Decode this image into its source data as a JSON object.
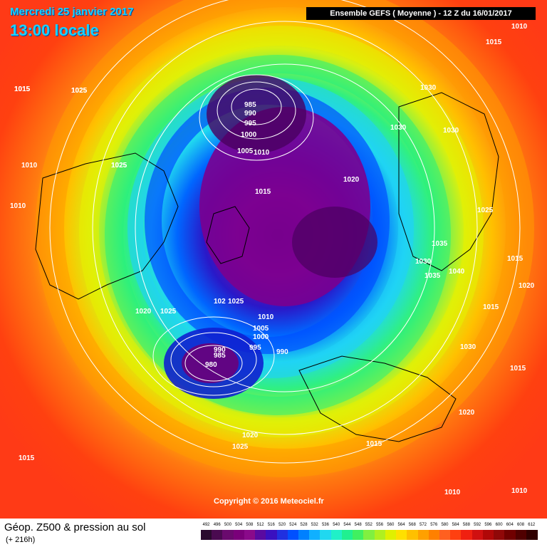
{
  "header": {
    "date_label": "Mercredi 25 janvier 2017",
    "time_label": "13:00 locale",
    "model_run": "Ensemble GEFS  ( Moyenne )  -  12 Z du 16/01/2017"
  },
  "copyright": "Copyright © 2016 Meteociel.fr",
  "footer": {
    "field_title": "Géop. Z500 & pression au sol",
    "lead_time": "(+ 216h)"
  },
  "legend": {
    "values": [
      "492",
      "496",
      "500",
      "504",
      "508",
      "512",
      "516",
      "520",
      "524",
      "528",
      "532",
      "536",
      "540",
      "544",
      "548",
      "552",
      "556",
      "560",
      "564",
      "568",
      "572",
      "576",
      "580",
      "584",
      "588",
      "592",
      "596",
      "600",
      "604",
      "608",
      "612"
    ],
    "colors": [
      "#2a0a2e",
      "#4a0a50",
      "#6a0a6e",
      "#7a007a",
      "#8a0a8a",
      "#5a0aa0",
      "#3a10c0",
      "#2030e0",
      "#0050ff",
      "#0080ff",
      "#10b0ff",
      "#20d8f0",
      "#20f0c8",
      "#20f090",
      "#40f060",
      "#80f040",
      "#b0f020",
      "#e0f000",
      "#ffe000",
      "#ffc000",
      "#ffa000",
      "#ff8000",
      "#ff6020",
      "#ff4010",
      "#f02010",
      "#d01010",
      "#b00808",
      "#900808",
      "#700000",
      "#500000",
      "#300000"
    ]
  },
  "pressure_labels": [
    {
      "text": "1010"
    },
    {
      "text": "1015"
    },
    {
      "text": "1015"
    },
    {
      "text": "1025"
    },
    {
      "text": "1030"
    },
    {
      "text": "1030"
    },
    {
      "text": "1030"
    },
    {
      "text": "985"
    },
    {
      "text": "990"
    },
    {
      "text": "995"
    },
    {
      "text": "1000"
    },
    {
      "text": "1005"
    },
    {
      "text": "1010"
    },
    {
      "text": "1025"
    },
    {
      "text": "1015"
    },
    {
      "text": "1020"
    },
    {
      "text": "1010"
    },
    {
      "text": "1010"
    },
    {
      "text": "1015"
    },
    {
      "text": "1025"
    },
    {
      "text": "1020"
    },
    {
      "text": "1025"
    },
    {
      "text": "1025"
    },
    {
      "text": "1025"
    },
    {
      "text": "1035"
    },
    {
      "text": "1030"
    },
    {
      "text": "1035"
    },
    {
      "text": "1040"
    },
    {
      "text": "1015"
    },
    {
      "text": "1020"
    },
    {
      "text": "1015"
    },
    {
      "text": "102"
    },
    {
      "text": "1025"
    },
    {
      "text": "1010"
    },
    {
      "text": "1005"
    },
    {
      "text": "1000"
    },
    {
      "text": "995"
    },
    {
      "text": "990"
    },
    {
      "text": "985"
    },
    {
      "text": "980"
    },
    {
      "text": "990"
    },
    {
      "text": "1030"
    },
    {
      "text": "1015"
    },
    {
      "text": "1020"
    },
    {
      "text": "1015"
    },
    {
      "text": "1020"
    },
    {
      "text": "1025"
    },
    {
      "text": "1015"
    },
    {
      "text": "1010"
    },
    {
      "text": "1010"
    }
  ]
}
